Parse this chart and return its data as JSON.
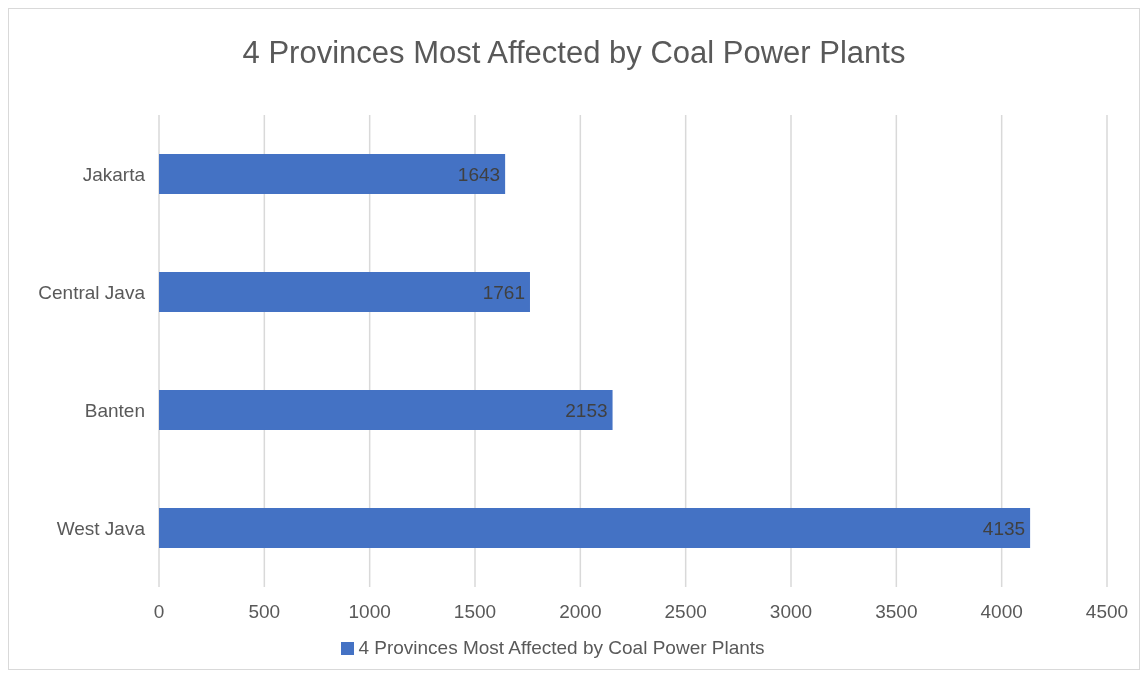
{
  "chart_data": {
    "type": "bar",
    "orientation": "horizontal",
    "title": "4 Provinces Most Affected by Coal Power Plants",
    "categories": [
      "Jakarta",
      "Central Java",
      "Banten",
      "West Java"
    ],
    "series": [
      {
        "name": "4 Provinces Most Affected by Coal Power Plants",
        "color": "#4472c4",
        "values": [
          1643,
          1761,
          2153,
          4135
        ]
      }
    ],
    "xlim": [
      0,
      4500
    ],
    "xticks": [
      0,
      500,
      1000,
      1500,
      2000,
      2500,
      3000,
      3500,
      4000,
      4500
    ],
    "grid": "x",
    "legend": "bottom",
    "data_labels": true
  }
}
